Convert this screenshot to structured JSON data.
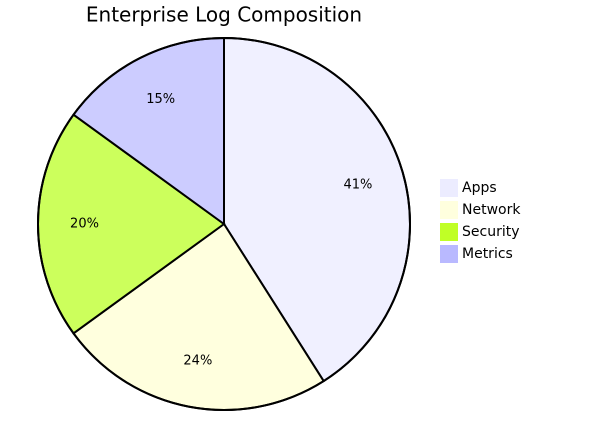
{
  "chart_data": {
    "type": "pie",
    "title": "Enterprise Log Composition",
    "categories": [
      "Apps",
      "Network",
      "Security",
      "Metrics"
    ],
    "values": [
      41,
      24,
      20,
      15
    ],
    "value_labels": [
      "41%",
      "24%",
      "20%",
      "15%"
    ],
    "colors": [
      "#f0f0ff",
      "#ffffde",
      "#ccff5c",
      "#ccccff"
    ],
    "legend_colors": [
      "#ececff",
      "#ffffde",
      "#c0ff26",
      "#b9b9ff"
    ],
    "legend": "right"
  }
}
